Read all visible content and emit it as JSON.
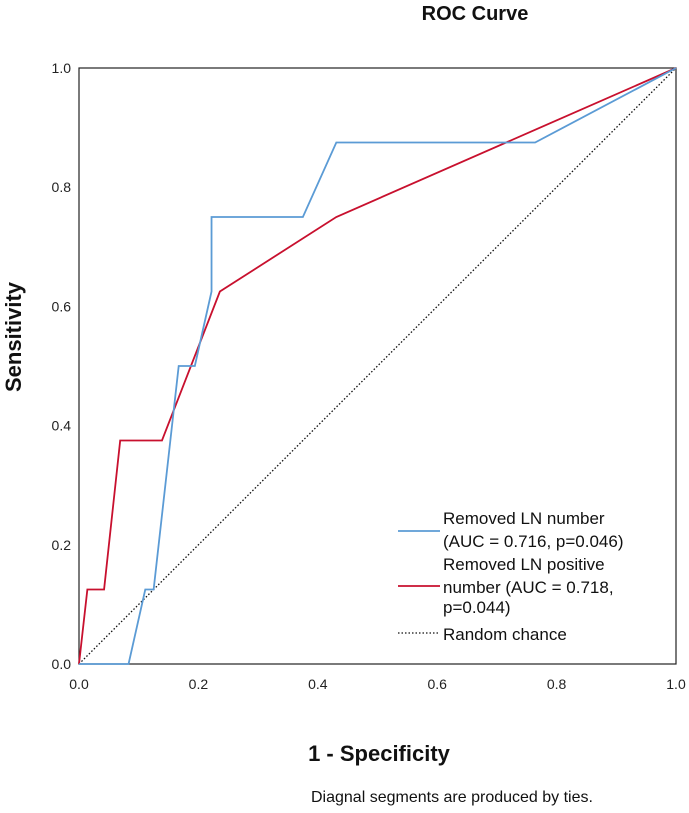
{
  "chart_data": {
    "type": "line",
    "title": "ROC Curve",
    "xlabel": "1 - Specificity",
    "ylabel": "Sensitivity",
    "xlim": [
      0.0,
      1.0
    ],
    "ylim": [
      0.0,
      1.0
    ],
    "x_ticks": [
      "0.0",
      "0.2",
      "0.4",
      "0.6",
      "0.8",
      "1.0"
    ],
    "y_ticks": [
      "0.0",
      "0.2",
      "0.4",
      "0.6",
      "0.8",
      "1.0"
    ],
    "grid": false,
    "legend_position": "bottom-right",
    "series": [
      {
        "name": "Removed LN number (AUC = 0.716, p=0.046)",
        "legend_lines": [
          "Removed LN number",
          "(AUC = 0.716, p=0.046)"
        ],
        "color": "#5b9bd5",
        "style": "solid",
        "x": [
          0.0,
          0.083,
          0.111,
          0.125,
          0.167,
          0.194,
          0.222,
          0.222,
          0.375,
          0.431,
          0.764,
          1.0
        ],
        "y": [
          0.0,
          0.0,
          0.125,
          0.125,
          0.5,
          0.5,
          0.625,
          0.75,
          0.75,
          0.875,
          0.875,
          1.0
        ]
      },
      {
        "name": "Removed LN positive number (AUC = 0.718, p=0.044)",
        "legend_lines": [
          "Removed LN positive",
          "number (AUC = 0.718,",
          "p=0.044)"
        ],
        "color": "#c8102e",
        "style": "solid",
        "x": [
          0.0,
          0.014,
          0.042,
          0.069,
          0.139,
          0.236,
          0.431,
          1.0
        ],
        "y": [
          0.0,
          0.125,
          0.125,
          0.375,
          0.375,
          0.625,
          0.75,
          1.0
        ]
      },
      {
        "name": "Random chance",
        "legend_lines": [
          "Random chance"
        ],
        "color": "#111111",
        "style": "dotted",
        "x": [
          0.0,
          1.0
        ],
        "y": [
          0.0,
          1.0
        ]
      }
    ],
    "footnote": "Diagnal segments are produced by ties."
  }
}
